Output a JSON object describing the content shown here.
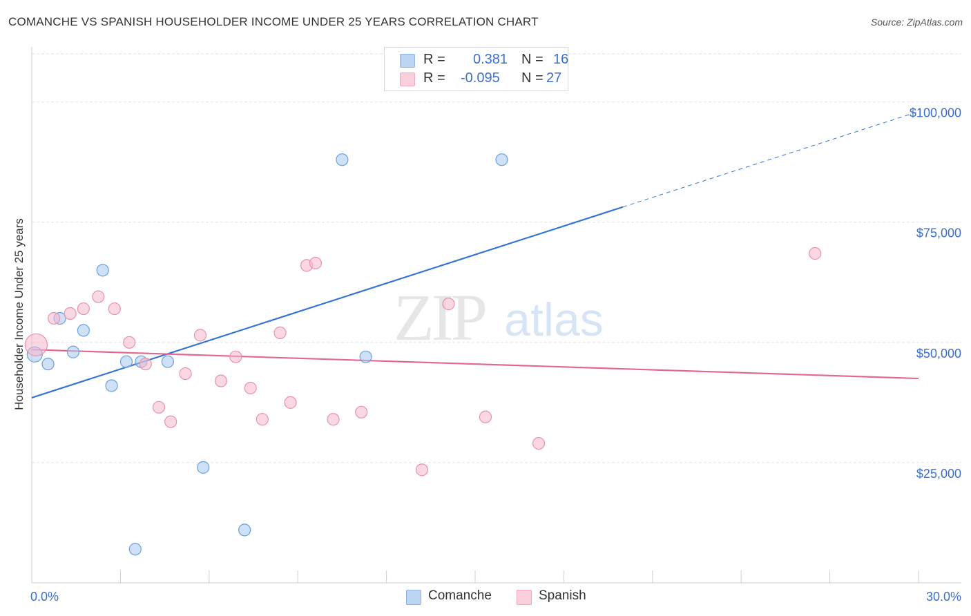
{
  "title": "COMANCHE VS SPANISH HOUSEHOLDER INCOME UNDER 25 YEARS CORRELATION CHART",
  "source": "Source: ZipAtlas.com",
  "watermark": {
    "zip": "ZIP",
    "atlas": "atlas"
  },
  "legend": {
    "rows": [
      {
        "r_label": "R =",
        "r_value": "0.381",
        "n_label": "N =",
        "n_value": "16",
        "color": "#a8c8f0"
      },
      {
        "r_label": "R =",
        "r_value": "-0.095",
        "n_label": "N =",
        "n_value": "27",
        "color": "#f6b8cc"
      }
    ]
  },
  "bottom_legend": [
    {
      "label": "Comanche",
      "color": "#a8c8f0"
    },
    {
      "label": "Spanish",
      "color": "#f6b8cc"
    }
  ],
  "chart_data": {
    "type": "scatter",
    "ylabel": "Householder Income Under 25 years",
    "xlim": [
      0,
      30
    ],
    "ylim": [
      0,
      100000
    ],
    "x_tick_labels": [
      "0.0%",
      "30.0%"
    ],
    "y_ticks": [
      {
        "value": 25000,
        "label": "$25,000"
      },
      {
        "value": 50000,
        "label": "$50,000"
      },
      {
        "value": 75000,
        "label": "$75,000"
      },
      {
        "value": 100000,
        "label": "$100,000"
      }
    ],
    "grid": true,
    "series": [
      {
        "name": "Comanche",
        "color": "#a8c8f0",
        "stroke": "#6a9fdc",
        "line_color": "#3574d4",
        "points": [
          [
            0.1,
            47500
          ],
          [
            0.55,
            45500
          ],
          [
            0.95,
            55000
          ],
          [
            1.4,
            48000
          ],
          [
            1.75,
            52500
          ],
          [
            2.4,
            65000
          ],
          [
            2.7,
            41000
          ],
          [
            3.2,
            46000
          ],
          [
            3.7,
            46000
          ],
          [
            4.6,
            46000
          ],
          [
            3.5,
            7000
          ],
          [
            5.8,
            24000
          ],
          [
            7.2,
            11000
          ],
          [
            10.5,
            88000
          ],
          [
            15.9,
            88000
          ],
          [
            11.3,
            47000
          ]
        ],
        "trend": {
          "x0": 0,
          "y0": 38500,
          "x_solid_end": 20,
          "x1": 30,
          "y1": 98000
        }
      },
      {
        "name": "Spanish",
        "color": "#f6b8cc",
        "stroke": "#e891ad",
        "line_color": "#e06892",
        "points": [
          [
            0.15,
            49500
          ],
          [
            0.75,
            55000
          ],
          [
            1.3,
            56000
          ],
          [
            1.75,
            57000
          ],
          [
            2.25,
            59500
          ],
          [
            2.8,
            57000
          ],
          [
            3.3,
            50000
          ],
          [
            3.85,
            45500
          ],
          [
            4.3,
            36500
          ],
          [
            4.7,
            33500
          ],
          [
            5.2,
            43500
          ],
          [
            5.7,
            51500
          ],
          [
            6.4,
            42000
          ],
          [
            6.9,
            47000
          ],
          [
            7.4,
            40500
          ],
          [
            7.8,
            34000
          ],
          [
            8.4,
            52000
          ],
          [
            8.75,
            37500
          ],
          [
            9.3,
            66000
          ],
          [
            9.6,
            66500
          ],
          [
            10.2,
            34000
          ],
          [
            11.15,
            35500
          ],
          [
            13.2,
            23500
          ],
          [
            14.1,
            58000
          ],
          [
            15.35,
            34500
          ],
          [
            17.15,
            29000
          ],
          [
            26.5,
            68500
          ]
        ],
        "trend": {
          "x0": 0,
          "y0": 48500,
          "x1": 30,
          "y1": 42500
        }
      }
    ]
  }
}
